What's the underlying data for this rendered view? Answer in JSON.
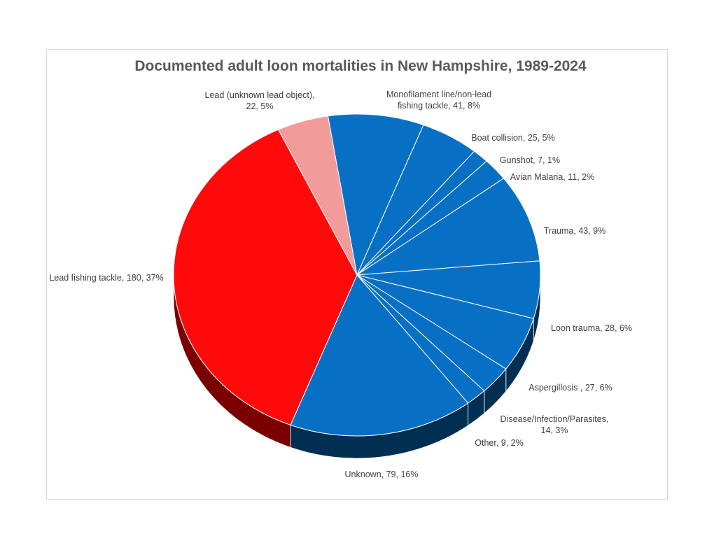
{
  "chart_data": {
    "type": "pie",
    "title": "Documented adult loon mortalities in New Hampshire, 1989-2024",
    "three_d": true,
    "slices": [
      {
        "label": "Monofilament line/non-lead fishing tackle",
        "value": 41,
        "percent": "8%",
        "label_lines": [
          "Monofilament line/non-lead",
          "fishing tackle, 41, 8%"
        ],
        "color": "#0870C4",
        "side": "#002F52"
      },
      {
        "label": "Boat collision",
        "value": 25,
        "percent": "5%",
        "label_lines": [
          "Boat collision, 25, 5%"
        ],
        "color": "#0870C4",
        "side": "#002F52"
      },
      {
        "label": "Gunshot",
        "value": 7,
        "percent": "1%",
        "label_lines": [
          "Gunshot, 7, 1%"
        ],
        "color": "#0870C4",
        "side": "#002F52"
      },
      {
        "label": "Avian Malaria",
        "value": 11,
        "percent": "2%",
        "label_lines": [
          "Avian Malaria, 11, 2%"
        ],
        "color": "#0870C4",
        "side": "#002F52"
      },
      {
        "label": "Trauma",
        "value": 43,
        "percent": "9%",
        "label_lines": [
          "Trauma, 43, 9%"
        ],
        "color": "#0870C4",
        "side": "#002F52"
      },
      {
        "label": "Loon trauma",
        "value": 28,
        "percent": "6%",
        "label_lines": [
          "Loon trauma, 28, 6%"
        ],
        "color": "#0870C4",
        "side": "#002F52"
      },
      {
        "label": "Aspergillosis ",
        "value": 27,
        "percent": "6%",
        "label_lines": [
          "Aspergillosis , 27, 6%"
        ],
        "color": "#0870C4",
        "side": "#002F52"
      },
      {
        "label": "Disease/Infection/Parasites",
        "value": 14,
        "percent": "3%",
        "label_lines": [
          "Disease/Infection/Parasites,",
          "14, 3%"
        ],
        "color": "#0870C4",
        "side": "#002F52"
      },
      {
        "label": "Other",
        "value": 9,
        "percent": "2%",
        "label_lines": [
          "Other, 9, 2%"
        ],
        "color": "#0870C4",
        "side": "#002F52"
      },
      {
        "label": "Unknown",
        "value": 79,
        "percent": "16%",
        "label_lines": [
          "Unknown, 79, 16%"
        ],
        "color": "#0870C4",
        "side": "#002F52"
      },
      {
        "label": "Lead fishing tackle",
        "value": 180,
        "percent": "37%",
        "label_lines": [
          "Lead fishing tackle, 180, 37%"
        ],
        "color": "#FF0A0A",
        "side": "#7A0000"
      },
      {
        "label": "Lead (unknown lead object)",
        "value": 22,
        "percent": "5%",
        "label_lines": [
          "Lead (unknown lead object),",
          "22, 5%"
        ],
        "color": "#F29B9B",
        "side": "#8C4A4A"
      }
    ]
  }
}
